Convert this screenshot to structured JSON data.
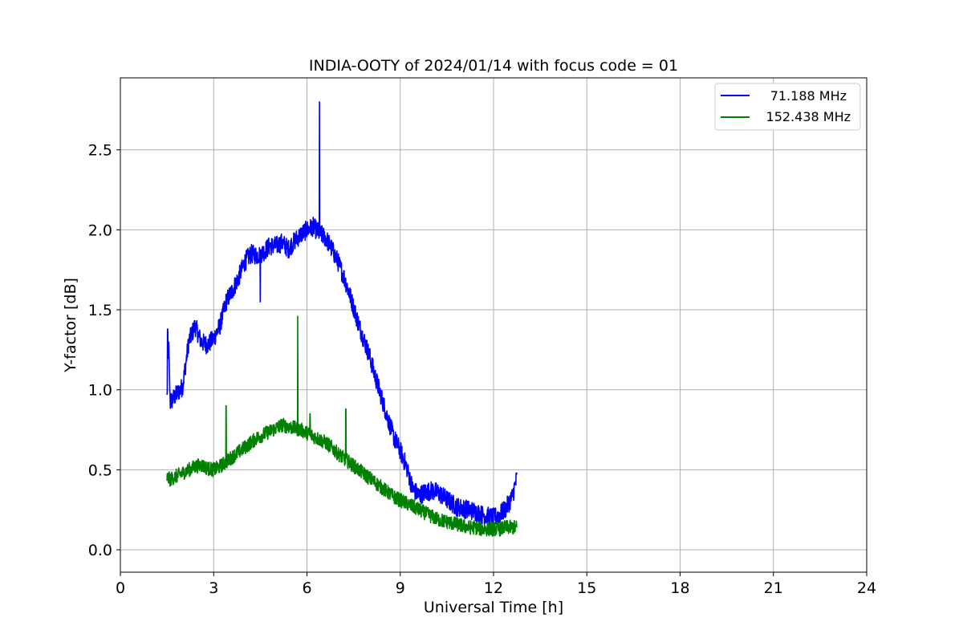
{
  "chart_data": {
    "type": "line",
    "title": "INDIA-OOTY of 2024/01/14 with focus code = 01",
    "xlabel": "Universal Time [h]",
    "ylabel": "Y-factor [dB]",
    "xlim": [
      0,
      24
    ],
    "ylim": [
      -0.14,
      2.95
    ],
    "xticks": [
      0,
      3,
      6,
      9,
      12,
      15,
      18,
      21,
      24
    ],
    "xtick_labels": [
      "0",
      "3",
      "6",
      "9",
      "12",
      "15",
      "18",
      "21",
      "24"
    ],
    "yticks": [
      0.0,
      0.5,
      1.0,
      1.5,
      2.0,
      2.5
    ],
    "ytick_labels": [
      "0.0",
      "0.5",
      "1.0",
      "1.5",
      "2.0",
      "2.5"
    ],
    "grid": true,
    "legend_position": "top-right",
    "series": [
      {
        "name": "71.188 MHz",
        "color": "#0000ff",
        "x": [
          1.5,
          1.55,
          1.6,
          1.8,
          2.0,
          2.2,
          2.4,
          2.6,
          2.8,
          3.0,
          3.2,
          3.4,
          3.6,
          3.8,
          4.0,
          4.2,
          4.4,
          4.6,
          4.8,
          5.0,
          5.2,
          5.4,
          5.6,
          5.8,
          6.0,
          6.2,
          6.4,
          6.6,
          6.8,
          7.0,
          7.2,
          7.4,
          7.6,
          7.8,
          8.0,
          8.2,
          8.4,
          8.6,
          8.8,
          9.0,
          9.2,
          9.4,
          9.6,
          9.8,
          10.0,
          10.2,
          10.4,
          10.6,
          10.8,
          11.0,
          11.2,
          11.4,
          11.6,
          11.8,
          12.0,
          12.2,
          12.4,
          12.6,
          12.75
        ],
        "y": [
          0.95,
          1.3,
          0.92,
          0.97,
          1.02,
          1.3,
          1.4,
          1.3,
          1.28,
          1.32,
          1.4,
          1.55,
          1.62,
          1.7,
          1.8,
          1.85,
          1.84,
          1.86,
          1.9,
          1.9,
          1.92,
          1.88,
          1.93,
          1.97,
          2.0,
          2.02,
          1.98,
          1.95,
          1.88,
          1.8,
          1.7,
          1.58,
          1.45,
          1.33,
          1.22,
          1.08,
          0.95,
          0.82,
          0.7,
          0.62,
          0.52,
          0.38,
          0.34,
          0.36,
          0.37,
          0.36,
          0.33,
          0.3,
          0.27,
          0.26,
          0.25,
          0.24,
          0.22,
          0.21,
          0.2,
          0.22,
          0.26,
          0.33,
          0.45
        ],
        "spikes": [
          [
            1.52,
            1.38
          ],
          [
            6.4,
            2.8
          ],
          [
            4.5,
            1.55
          ],
          [
            9.0,
            0.6
          ]
        ]
      },
      {
        "name": "152.438 MHz",
        "color": "#008000",
        "x": [
          1.5,
          1.6,
          1.8,
          2.0,
          2.2,
          2.4,
          2.6,
          2.8,
          3.0,
          3.2,
          3.4,
          3.6,
          3.8,
          4.0,
          4.2,
          4.4,
          4.6,
          4.8,
          5.0,
          5.2,
          5.4,
          5.6,
          5.8,
          6.0,
          6.2,
          6.4,
          6.6,
          6.8,
          7.0,
          7.2,
          7.4,
          7.6,
          7.8,
          8.0,
          8.2,
          8.4,
          8.6,
          8.8,
          9.0,
          9.2,
          9.4,
          9.6,
          9.8,
          10.0,
          10.2,
          10.4,
          10.6,
          10.8,
          11.0,
          11.2,
          11.4,
          11.6,
          11.8,
          12.0,
          12.2,
          12.4,
          12.6,
          12.75
        ],
        "y": [
          0.45,
          0.44,
          0.46,
          0.48,
          0.5,
          0.52,
          0.53,
          0.51,
          0.5,
          0.52,
          0.55,
          0.58,
          0.61,
          0.64,
          0.67,
          0.7,
          0.72,
          0.74,
          0.76,
          0.78,
          0.77,
          0.76,
          0.75,
          0.73,
          0.71,
          0.69,
          0.67,
          0.64,
          0.6,
          0.57,
          0.54,
          0.51,
          0.48,
          0.45,
          0.42,
          0.39,
          0.36,
          0.33,
          0.31,
          0.29,
          0.27,
          0.25,
          0.23,
          0.21,
          0.19,
          0.18,
          0.17,
          0.16,
          0.15,
          0.14,
          0.14,
          0.13,
          0.13,
          0.13,
          0.13,
          0.14,
          0.14,
          0.14
        ],
        "spikes": [
          [
            3.4,
            0.9
          ],
          [
            5.7,
            1.46
          ],
          [
            7.25,
            0.88
          ],
          [
            6.1,
            0.85
          ]
        ]
      }
    ]
  }
}
